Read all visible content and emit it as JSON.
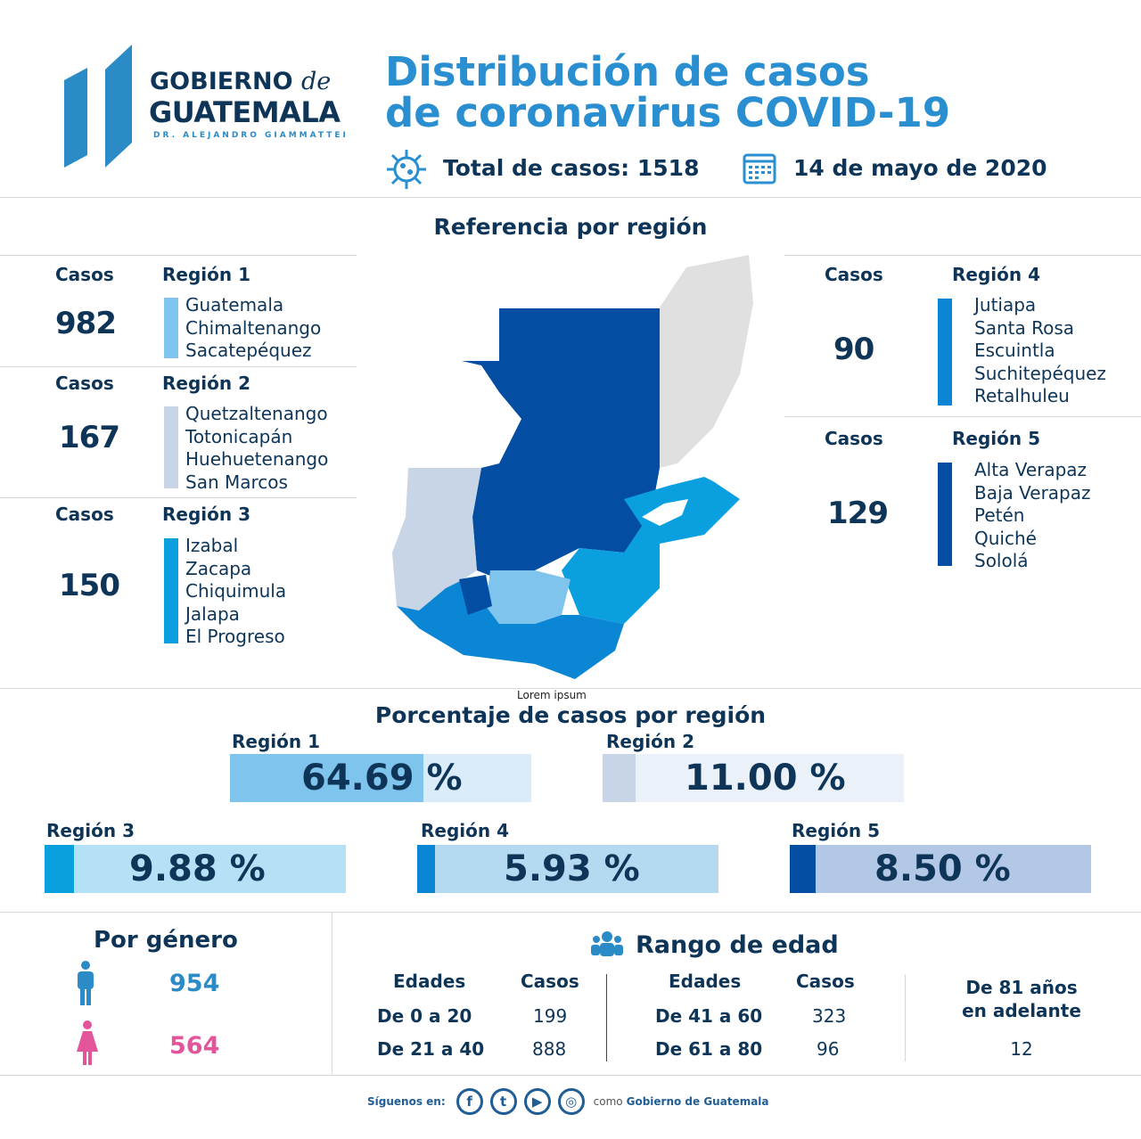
{
  "logo": {
    "line1": "GOBIERNO",
    "line1b": "de",
    "line2": "GUATEMALA",
    "line3": "DR. ALEJANDRO GIAMMATTEI"
  },
  "header": {
    "title_line1": "Distribución de casos",
    "title_line2": "de coronavirus COVID-19",
    "total_label": "Total de casos: 1518",
    "date": "14 de mayo de 2020"
  },
  "map": {
    "title": "Referencia por región",
    "placeholder": "Lorem ipsum"
  },
  "colors": {
    "region1": "#7fc4ec",
    "region2": "#c7d5e6",
    "region3": "#0aa0df",
    "region4": "#0b86d5",
    "region5": "#034ea2",
    "title": "#2a8fd0",
    "navy": "#0e3557"
  },
  "regions": [
    {
      "casos_label": "Casos",
      "cases": "982",
      "name": "Región 1",
      "departments": [
        "Guatemala",
        "Chimaltenango",
        "Sacatepéquez"
      ]
    },
    {
      "casos_label": "Casos",
      "cases": "167",
      "name": "Región 2",
      "departments": [
        "Quetzaltenango",
        "Totonicapán",
        "Huehuetenango",
        "San Marcos"
      ]
    },
    {
      "casos_label": "Casos",
      "cases": "150",
      "name": "Región 3",
      "departments": [
        "Izabal",
        "Zacapa",
        "Chiquimula",
        "Jalapa",
        "El Progreso"
      ]
    },
    {
      "casos_label": "Casos",
      "cases": "90",
      "name": "Región 4",
      "departments": [
        "Jutiapa",
        "Santa Rosa",
        "Escuintla",
        "Suchitepéquez",
        "Retalhuleu"
      ]
    },
    {
      "casos_label": "Casos",
      "cases": "129",
      "name": "Región 5",
      "departments": [
        "Alta Verapaz",
        "Baja Verapaz",
        "Petén",
        "Quiché",
        "Sololá"
      ]
    }
  ],
  "percentages": {
    "title": "Porcentaje de casos por región",
    "items": [
      {
        "name": "Región 1",
        "value": "64.69",
        "unit": "%",
        "percent": 64.69
      },
      {
        "name": "Región 2",
        "value": "11.00",
        "unit": "%",
        "percent": 11.0
      },
      {
        "name": "Región 3",
        "value": "9.88",
        "unit": "%",
        "percent": 9.88
      },
      {
        "name": "Región 4",
        "value": "5.93",
        "unit": "%",
        "percent": 5.93
      },
      {
        "name": "Región 5",
        "value": "8.50",
        "unit": "%",
        "percent": 8.5
      }
    ]
  },
  "gender": {
    "title": "Por género",
    "male": "954",
    "female": "564"
  },
  "age": {
    "title": "Rango de edad",
    "col_edades": "Edades",
    "col_casos": "Casos",
    "rows_left": [
      {
        "range": "De 0 a 20",
        "cases": "199"
      },
      {
        "range": "De 21 a 40",
        "cases": "888"
      }
    ],
    "rows_right": [
      {
        "range": "De 41 a 60",
        "cases": "323"
      },
      {
        "range": "De 61 a 80",
        "cases": "96"
      }
    ],
    "over81_line1": "De 81 años",
    "over81_line2": "en adelante",
    "over81_cases": "12"
  },
  "footer": {
    "follow": "Síguenos en:",
    "como": "como",
    "account": "Gobierno de Guatemala"
  }
}
